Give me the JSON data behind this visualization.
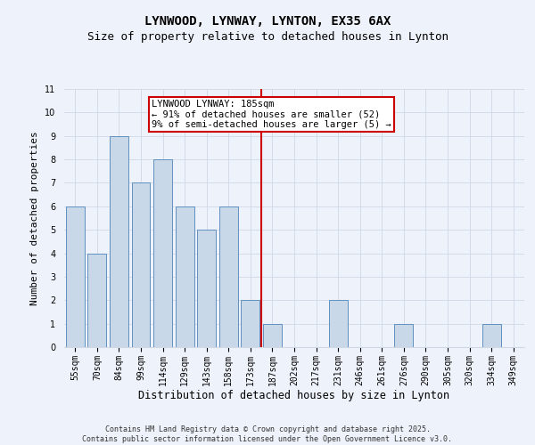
{
  "title": "LYNWOOD, LYNWAY, LYNTON, EX35 6AX",
  "subtitle": "Size of property relative to detached houses in Lynton",
  "xlabel": "Distribution of detached houses by size in Lynton",
  "ylabel": "Number of detached properties",
  "categories": [
    "55sqm",
    "70sqm",
    "84sqm",
    "99sqm",
    "114sqm",
    "129sqm",
    "143sqm",
    "158sqm",
    "173sqm",
    "187sqm",
    "202sqm",
    "217sqm",
    "231sqm",
    "246sqm",
    "261sqm",
    "276sqm",
    "290sqm",
    "305sqm",
    "320sqm",
    "334sqm",
    "349sqm"
  ],
  "values": [
    6,
    4,
    9,
    7,
    8,
    6,
    5,
    6,
    2,
    1,
    0,
    0,
    2,
    0,
    0,
    1,
    0,
    0,
    0,
    1,
    0
  ],
  "bar_color": "#c8d8e8",
  "bar_edge_color": "#6090c0",
  "vline_index": 8.5,
  "vline_color": "#cc0000",
  "annotation_text": "LYNWOOD LYNWAY: 185sqm\n← 91% of detached houses are smaller (52)\n9% of semi-detached houses are larger (5) →",
  "annotation_box_color": "#ffffff",
  "annotation_box_edge": "#cc0000",
  "ylim": [
    0,
    11
  ],
  "yticks": [
    0,
    1,
    2,
    3,
    4,
    5,
    6,
    7,
    8,
    9,
    10,
    11
  ],
  "grid_color": "#d0d8e8",
  "background_color": "#eef2fa",
  "footer": "Contains HM Land Registry data © Crown copyright and database right 2025.\nContains public sector information licensed under the Open Government Licence v3.0.",
  "title_fontsize": 10,
  "subtitle_fontsize": 9,
  "xlabel_fontsize": 8.5,
  "ylabel_fontsize": 8,
  "tick_fontsize": 7,
  "annotation_fontsize": 7.5,
  "footer_fontsize": 6
}
